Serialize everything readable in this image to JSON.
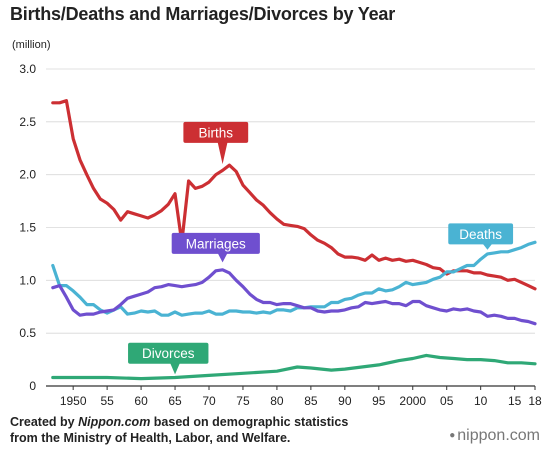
{
  "chart_data": {
    "type": "line",
    "title": "Births/Deaths and Marriages/Divorces by Year",
    "ylabel": "(million)",
    "xlabel": "",
    "ylim": [
      0,
      3.0
    ],
    "xlim": [
      1946,
      2018
    ],
    "yticks": [
      "0",
      "0.5",
      "1.0",
      "1.5",
      "2.0",
      "2.5",
      "3.0"
    ],
    "ytick_values": [
      0,
      0.5,
      1.0,
      1.5,
      2.0,
      2.5,
      3.0
    ],
    "xticks": [
      {
        "year": 1950,
        "label": "1950"
      },
      {
        "year": 1955,
        "label": "55"
      },
      {
        "year": 1960,
        "label": "60"
      },
      {
        "year": 1965,
        "label": "65"
      },
      {
        "year": 1970,
        "label": "70"
      },
      {
        "year": 1975,
        "label": "75"
      },
      {
        "year": 1980,
        "label": "80"
      },
      {
        "year": 1985,
        "label": "85"
      },
      {
        "year": 1990,
        "label": "90"
      },
      {
        "year": 1995,
        "label": "95"
      },
      {
        "year": 2000,
        "label": "2000"
      },
      {
        "year": 2005,
        "label": "05"
      },
      {
        "year": 2010,
        "label": "10"
      },
      {
        "year": 2015,
        "label": "15"
      },
      {
        "year": 2018,
        "label": "18"
      }
    ],
    "grid": "horizontal",
    "series": [
      {
        "name": "Births",
        "color": "#cc2f33",
        "label_year": 1971,
        "label_value": 2.4,
        "pointer_year": 1972,
        "pointer_value": 2.1,
        "points": [
          [
            1947,
            2.68
          ],
          [
            1948,
            2.68
          ],
          [
            1949,
            2.7
          ],
          [
            1950,
            2.34
          ],
          [
            1951,
            2.14
          ],
          [
            1952,
            2.0
          ],
          [
            1953,
            1.87
          ],
          [
            1954,
            1.77
          ],
          [
            1955,
            1.73
          ],
          [
            1956,
            1.67
          ],
          [
            1957,
            1.57
          ],
          [
            1958,
            1.65
          ],
          [
            1959,
            1.63
          ],
          [
            1960,
            1.61
          ],
          [
            1961,
            1.59
          ],
          [
            1962,
            1.62
          ],
          [
            1963,
            1.66
          ],
          [
            1964,
            1.72
          ],
          [
            1965,
            1.82
          ],
          [
            1966,
            1.36
          ],
          [
            1967,
            1.94
          ],
          [
            1968,
            1.87
          ],
          [
            1969,
            1.89
          ],
          [
            1970,
            1.93
          ],
          [
            1971,
            2.0
          ],
          [
            1972,
            2.04
          ],
          [
            1973,
            2.09
          ],
          [
            1974,
            2.03
          ],
          [
            1975,
            1.9
          ],
          [
            1976,
            1.83
          ],
          [
            1977,
            1.76
          ],
          [
            1978,
            1.71
          ],
          [
            1979,
            1.64
          ],
          [
            1980,
            1.58
          ],
          [
            1981,
            1.53
          ],
          [
            1982,
            1.52
          ],
          [
            1983,
            1.51
          ],
          [
            1984,
            1.49
          ],
          [
            1985,
            1.43
          ],
          [
            1986,
            1.38
          ],
          [
            1987,
            1.35
          ],
          [
            1988,
            1.31
          ],
          [
            1989,
            1.25
          ],
          [
            1990,
            1.22
          ],
          [
            1991,
            1.22
          ],
          [
            1992,
            1.21
          ],
          [
            1993,
            1.19
          ],
          [
            1994,
            1.24
          ],
          [
            1995,
            1.19
          ],
          [
            1996,
            1.21
          ],
          [
            1997,
            1.19
          ],
          [
            1998,
            1.2
          ],
          [
            1999,
            1.18
          ],
          [
            2000,
            1.19
          ],
          [
            2001,
            1.17
          ],
          [
            2002,
            1.15
          ],
          [
            2003,
            1.12
          ],
          [
            2004,
            1.11
          ],
          [
            2005,
            1.06
          ],
          [
            2006,
            1.09
          ],
          [
            2007,
            1.09
          ],
          [
            2008,
            1.09
          ],
          [
            2009,
            1.07
          ],
          [
            2010,
            1.07
          ],
          [
            2011,
            1.05
          ],
          [
            2012,
            1.04
          ],
          [
            2013,
            1.03
          ],
          [
            2014,
            1.0
          ],
          [
            2015,
            1.01
          ],
          [
            2016,
            0.98
          ],
          [
            2017,
            0.95
          ],
          [
            2018,
            0.92
          ]
        ]
      },
      {
        "name": "Deaths",
        "color": "#4ab3d3",
        "label_year": 2010,
        "label_value": 1.44,
        "pointer_year": 2011,
        "pointer_value": 1.29,
        "points": [
          [
            1947,
            1.14
          ],
          [
            1948,
            0.95
          ],
          [
            1949,
            0.95
          ],
          [
            1950,
            0.9
          ],
          [
            1951,
            0.84
          ],
          [
            1952,
            0.77
          ],
          [
            1953,
            0.77
          ],
          [
            1954,
            0.72
          ],
          [
            1955,
            0.69
          ],
          [
            1956,
            0.72
          ],
          [
            1957,
            0.75
          ],
          [
            1958,
            0.68
          ],
          [
            1959,
            0.69
          ],
          [
            1960,
            0.71
          ],
          [
            1961,
            0.7
          ],
          [
            1962,
            0.71
          ],
          [
            1963,
            0.67
          ],
          [
            1964,
            0.67
          ],
          [
            1965,
            0.7
          ],
          [
            1966,
            0.67
          ],
          [
            1967,
            0.68
          ],
          [
            1968,
            0.69
          ],
          [
            1969,
            0.69
          ],
          [
            1970,
            0.71
          ],
          [
            1971,
            0.68
          ],
          [
            1972,
            0.68
          ],
          [
            1973,
            0.71
          ],
          [
            1974,
            0.71
          ],
          [
            1975,
            0.7
          ],
          [
            1976,
            0.7
          ],
          [
            1977,
            0.69
          ],
          [
            1978,
            0.7
          ],
          [
            1979,
            0.69
          ],
          [
            1980,
            0.72
          ],
          [
            1981,
            0.72
          ],
          [
            1982,
            0.71
          ],
          [
            1983,
            0.74
          ],
          [
            1984,
            0.74
          ],
          [
            1985,
            0.75
          ],
          [
            1986,
            0.75
          ],
          [
            1987,
            0.75
          ],
          [
            1988,
            0.79
          ],
          [
            1989,
            0.79
          ],
          [
            1990,
            0.82
          ],
          [
            1991,
            0.83
          ],
          [
            1992,
            0.86
          ],
          [
            1993,
            0.88
          ],
          [
            1994,
            0.88
          ],
          [
            1995,
            0.92
          ],
          [
            1996,
            0.9
          ],
          [
            1997,
            0.91
          ],
          [
            1998,
            0.94
          ],
          [
            1999,
            0.98
          ],
          [
            2000,
            0.96
          ],
          [
            2001,
            0.97
          ],
          [
            2002,
            0.98
          ],
          [
            2003,
            1.01
          ],
          [
            2004,
            1.03
          ],
          [
            2005,
            1.08
          ],
          [
            2006,
            1.08
          ],
          [
            2007,
            1.11
          ],
          [
            2008,
            1.14
          ],
          [
            2009,
            1.14
          ],
          [
            2010,
            1.2
          ],
          [
            2011,
            1.25
          ],
          [
            2012,
            1.26
          ],
          [
            2013,
            1.27
          ],
          [
            2014,
            1.27
          ],
          [
            2015,
            1.29
          ],
          [
            2016,
            1.31
          ],
          [
            2017,
            1.34
          ],
          [
            2018,
            1.36
          ]
        ]
      },
      {
        "name": "Marriages",
        "color": "#6f4fcf",
        "label_year": 1971,
        "label_value": 1.35,
        "pointer_year": 1972,
        "pointer_value": 1.17,
        "points": [
          [
            1947,
            0.93
          ],
          [
            1948,
            0.95
          ],
          [
            1949,
            0.84
          ],
          [
            1950,
            0.72
          ],
          [
            1951,
            0.67
          ],
          [
            1952,
            0.68
          ],
          [
            1953,
            0.68
          ],
          [
            1954,
            0.7
          ],
          [
            1955,
            0.71
          ],
          [
            1956,
            0.72
          ],
          [
            1957,
            0.77
          ],
          [
            1958,
            0.83
          ],
          [
            1959,
            0.85
          ],
          [
            1960,
            0.87
          ],
          [
            1961,
            0.89
          ],
          [
            1962,
            0.93
          ],
          [
            1963,
            0.94
          ],
          [
            1964,
            0.96
          ],
          [
            1965,
            0.95
          ],
          [
            1966,
            0.94
          ],
          [
            1967,
            0.95
          ],
          [
            1968,
            0.96
          ],
          [
            1969,
            0.98
          ],
          [
            1970,
            1.03
          ],
          [
            1971,
            1.09
          ],
          [
            1972,
            1.1
          ],
          [
            1973,
            1.07
          ],
          [
            1974,
            1.0
          ],
          [
            1975,
            0.94
          ],
          [
            1976,
            0.87
          ],
          [
            1977,
            0.82
          ],
          [
            1978,
            0.79
          ],
          [
            1979,
            0.79
          ],
          [
            1980,
            0.77
          ],
          [
            1981,
            0.78
          ],
          [
            1982,
            0.78
          ],
          [
            1983,
            0.76
          ],
          [
            1984,
            0.74
          ],
          [
            1985,
            0.74
          ],
          [
            1986,
            0.71
          ],
          [
            1987,
            0.7
          ],
          [
            1988,
            0.71
          ],
          [
            1989,
            0.71
          ],
          [
            1990,
            0.72
          ],
          [
            1991,
            0.74
          ],
          [
            1992,
            0.75
          ],
          [
            1993,
            0.79
          ],
          [
            1994,
            0.78
          ],
          [
            1995,
            0.79
          ],
          [
            1996,
            0.8
          ],
          [
            1997,
            0.78
          ],
          [
            1998,
            0.78
          ],
          [
            1999,
            0.76
          ],
          [
            2000,
            0.8
          ],
          [
            2001,
            0.8
          ],
          [
            2002,
            0.76
          ],
          [
            2003,
            0.74
          ],
          [
            2004,
            0.72
          ],
          [
            2005,
            0.71
          ],
          [
            2006,
            0.73
          ],
          [
            2007,
            0.72
          ],
          [
            2008,
            0.73
          ],
          [
            2009,
            0.71
          ],
          [
            2010,
            0.7
          ],
          [
            2011,
            0.66
          ],
          [
            2012,
            0.67
          ],
          [
            2013,
            0.66
          ],
          [
            2014,
            0.64
          ],
          [
            2015,
            0.64
          ],
          [
            2016,
            0.62
          ],
          [
            2017,
            0.61
          ],
          [
            2018,
            0.59
          ]
        ]
      },
      {
        "name": "Divorces",
        "color": "#2fa876",
        "label_year": 1964,
        "label_value": 0.31,
        "pointer_year": 1965,
        "pointer_value": 0.11,
        "points": [
          [
            1947,
            0.08
          ],
          [
            1950,
            0.08
          ],
          [
            1955,
            0.08
          ],
          [
            1960,
            0.07
          ],
          [
            1965,
            0.08
          ],
          [
            1970,
            0.1
          ],
          [
            1975,
            0.12
          ],
          [
            1980,
            0.14
          ],
          [
            1983,
            0.18
          ],
          [
            1985,
            0.17
          ],
          [
            1988,
            0.15
          ],
          [
            1990,
            0.16
          ],
          [
            1995,
            0.2
          ],
          [
            1998,
            0.24
          ],
          [
            2000,
            0.26
          ],
          [
            2002,
            0.29
          ],
          [
            2004,
            0.27
          ],
          [
            2006,
            0.26
          ],
          [
            2008,
            0.25
          ],
          [
            2010,
            0.25
          ],
          [
            2012,
            0.24
          ],
          [
            2014,
            0.22
          ],
          [
            2016,
            0.22
          ],
          [
            2018,
            0.21
          ]
        ]
      }
    ]
  },
  "footer": {
    "source_line1_prefix": "Created by ",
    "source_line1_italic": "Nippon.com",
    "source_line1_suffix": " based on demographic statistics",
    "source_line2": "from the Ministry of Health, Labor, and Welfare.",
    "logo_text": "nippon.com",
    "logo_icon": "nippon-dot-icon"
  }
}
